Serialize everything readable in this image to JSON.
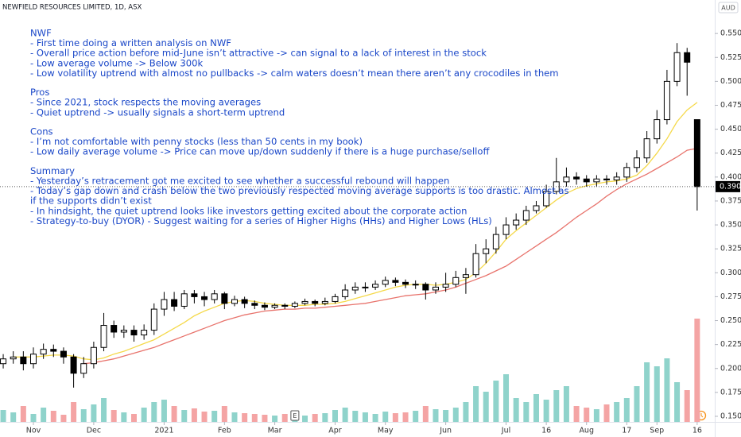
{
  "chart_data": {
    "type": "candlestick",
    "title": "NEWFIELD RESOURCES LIMITED, 1D, ASX",
    "currency": "AUD",
    "open": [
      0.205,
      0.21,
      0.212,
      0.205,
      0.215,
      0.22,
      0.218,
      0.212,
      0.195,
      0.205,
      0.222,
      0.245,
      0.238,
      0.24,
      0.235,
      0.24,
      0.262,
      0.272,
      0.265,
      0.278,
      0.275,
      0.272,
      0.278,
      0.268,
      0.272,
      0.268,
      0.266,
      0.264,
      0.266,
      0.265,
      0.268,
      0.27,
      0.268,
      0.27,
      0.275,
      0.282,
      0.285,
      0.285,
      0.288,
      0.292,
      0.29,
      0.288,
      0.288,
      0.282,
      0.285,
      0.288,
      0.295,
      0.298,
      0.32,
      0.325,
      0.34,
      0.35,
      0.355,
      0.365,
      0.37,
      0.385,
      0.395,
      0.4,
      0.398,
      0.395,
      0.398,
      0.397,
      0.4,
      0.41,
      0.42,
      0.44,
      0.46,
      0.5,
      0.53,
      0.46
    ],
    "high": [
      0.215,
      0.218,
      0.218,
      0.222,
      0.226,
      0.225,
      0.222,
      0.215,
      0.212,
      0.228,
      0.258,
      0.25,
      0.245,
      0.245,
      0.246,
      0.268,
      0.28,
      0.28,
      0.282,
      0.282,
      0.28,
      0.282,
      0.28,
      0.276,
      0.275,
      0.271,
      0.269,
      0.268,
      0.268,
      0.27,
      0.273,
      0.272,
      0.274,
      0.278,
      0.288,
      0.29,
      0.29,
      0.292,
      0.296,
      0.295,
      0.293,
      0.292,
      0.29,
      0.29,
      0.3,
      0.302,
      0.305,
      0.33,
      0.335,
      0.348,
      0.358,
      0.362,
      0.37,
      0.375,
      0.392,
      0.42,
      0.41,
      0.405,
      0.402,
      0.402,
      0.402,
      0.405,
      0.415,
      0.428,
      0.448,
      0.47,
      0.512,
      0.54,
      0.535,
      0.46
    ],
    "low": [
      0.2,
      0.205,
      0.198,
      0.2,
      0.21,
      0.212,
      0.205,
      0.18,
      0.19,
      0.2,
      0.218,
      0.232,
      0.232,
      0.228,
      0.23,
      0.235,
      0.255,
      0.26,
      0.262,
      0.268,
      0.265,
      0.268,
      0.262,
      0.265,
      0.263,
      0.262,
      0.261,
      0.262,
      0.262,
      0.263,
      0.266,
      0.265,
      0.266,
      0.268,
      0.272,
      0.278,
      0.28,
      0.282,
      0.285,
      0.286,
      0.284,
      0.283,
      0.272,
      0.278,
      0.28,
      0.285,
      0.278,
      0.295,
      0.31,
      0.32,
      0.335,
      0.345,
      0.35,
      0.362,
      0.368,
      0.382,
      0.39,
      0.392,
      0.39,
      0.39,
      0.392,
      0.392,
      0.395,
      0.405,
      0.415,
      0.435,
      0.455,
      0.495,
      0.485,
      0.365
    ],
    "close": [
      0.21,
      0.212,
      0.205,
      0.215,
      0.22,
      0.218,
      0.212,
      0.195,
      0.205,
      0.222,
      0.245,
      0.238,
      0.24,
      0.235,
      0.24,
      0.262,
      0.272,
      0.265,
      0.278,
      0.275,
      0.272,
      0.278,
      0.268,
      0.272,
      0.268,
      0.266,
      0.264,
      0.266,
      0.265,
      0.268,
      0.27,
      0.268,
      0.27,
      0.275,
      0.282,
      0.285,
      0.285,
      0.288,
      0.292,
      0.29,
      0.288,
      0.288,
      0.282,
      0.285,
      0.288,
      0.295,
      0.298,
      0.32,
      0.325,
      0.34,
      0.35,
      0.355,
      0.365,
      0.37,
      0.385,
      0.395,
      0.4,
      0.398,
      0.395,
      0.398,
      0.397,
      0.4,
      0.41,
      0.42,
      0.44,
      0.46,
      0.5,
      0.53,
      0.52,
      0.39
    ],
    "volume": [
      150,
      120,
      200,
      100,
      180,
      140,
      90,
      250,
      160,
      220,
      300,
      150,
      120,
      100,
      180,
      250,
      280,
      200,
      150,
      170,
      130,
      140,
      200,
      120,
      110,
      100,
      90,
      80,
      100,
      90,
      80,
      100,
      110,
      150,
      180,
      140,
      120,
      100,
      130,
      110,
      120,
      140,
      200,
      160,
      150,
      180,
      250,
      450,
      380,
      520,
      600,
      300,
      250,
      350,
      280,
      400,
      450,
      200,
      180,
      160,
      220,
      250,
      300,
      450,
      750,
      700,
      800,
      500,
      400,
      1300
    ],
    "up_color": "#ffffff",
    "down_color": "#000000",
    "volume_up_color": "#8fd3cb",
    "volume_down_color": "#f4a4a4",
    "series": [
      {
        "color": "#f5d94a",
        "values": [
          null,
          0.212,
          0.212,
          0.212,
          0.213,
          0.214,
          0.214,
          0.213,
          0.21,
          0.209,
          0.211,
          0.215,
          0.218,
          0.222,
          0.226,
          0.23,
          0.236,
          0.242,
          0.248,
          0.255,
          0.26,
          0.264,
          0.268,
          0.27,
          0.271,
          0.27,
          0.268,
          0.267,
          0.266,
          0.266,
          0.266,
          0.267,
          0.267,
          0.268,
          0.27,
          0.273,
          0.276,
          0.279,
          0.282,
          0.285,
          0.287,
          0.288,
          0.288,
          0.287,
          0.288,
          0.29,
          0.293,
          0.3,
          0.31,
          0.322,
          0.335,
          0.344,
          0.352,
          0.36,
          0.368,
          0.376,
          0.383,
          0.388,
          0.391,
          0.393,
          0.395,
          0.396,
          0.398,
          0.402,
          0.412,
          0.425,
          0.44,
          0.458,
          0.47,
          0.478
        ]
      },
      {
        "color": "#e8736c",
        "values": [
          null,
          null,
          null,
          null,
          null,
          null,
          null,
          null,
          0.205,
          0.206,
          0.208,
          0.21,
          0.213,
          0.216,
          0.219,
          0.222,
          0.226,
          0.23,
          0.234,
          0.238,
          0.242,
          0.246,
          0.25,
          0.253,
          0.256,
          0.258,
          0.26,
          0.261,
          0.262,
          0.262,
          0.263,
          0.263,
          0.264,
          0.265,
          0.266,
          0.267,
          0.268,
          0.27,
          0.272,
          0.274,
          0.276,
          0.277,
          0.278,
          0.28,
          0.282,
          0.285,
          0.289,
          0.293,
          0.297,
          0.302,
          0.307,
          0.314,
          0.321,
          0.328,
          0.335,
          0.342,
          0.35,
          0.358,
          0.365,
          0.372,
          0.38,
          0.387,
          0.393,
          0.398,
          0.403,
          0.409,
          0.415,
          0.421,
          0.428,
          0.43
        ]
      }
    ],
    "ylim": [
      0.145,
      0.585
    ],
    "yticks": [
      {
        "value": 0.15,
        "label": "0.150"
      },
      {
        "value": 0.175,
        "label": "0.175"
      },
      {
        "value": 0.2,
        "label": "0.200"
      },
      {
        "value": 0.225,
        "label": "0.225"
      },
      {
        "value": 0.25,
        "label": "0.250"
      },
      {
        "value": 0.275,
        "label": "0.275"
      },
      {
        "value": 0.3,
        "label": "0.300"
      },
      {
        "value": 0.325,
        "label": "0.325"
      },
      {
        "value": 0.35,
        "label": "0.350"
      },
      {
        "value": 0.375,
        "label": "0.375"
      },
      {
        "value": 0.4,
        "label": "0.400"
      },
      {
        "value": 0.425,
        "label": "0.425"
      },
      {
        "value": 0.45,
        "label": "0.450"
      },
      {
        "value": 0.475,
        "label": "0.475"
      },
      {
        "value": 0.5,
        "label": "0.500"
      },
      {
        "value": 0.525,
        "label": "0.525"
      },
      {
        "value": 0.55,
        "label": "0.550"
      }
    ],
    "xlim": [
      -0.32,
      70.75
    ],
    "xticks": [
      {
        "value": 3,
        "label": "Nov"
      },
      {
        "value": 9,
        "label": "Dec"
      },
      {
        "value": 16,
        "label": "2021"
      },
      {
        "value": 22,
        "label": "Feb"
      },
      {
        "value": 27,
        "label": "Mar"
      },
      {
        "value": 33,
        "label": "Apr"
      },
      {
        "value": 38,
        "label": "May"
      },
      {
        "value": 44,
        "label": "Jun"
      },
      {
        "value": 50,
        "label": "Jul"
      },
      {
        "value": 54,
        "label": "16"
      },
      {
        "value": 58,
        "label": "Aug"
      },
      {
        "value": 62,
        "label": "17"
      },
      {
        "value": 65,
        "label": "Sep"
      },
      {
        "value": 69,
        "label": "16"
      }
    ],
    "last_price": {
      "value": 0.39,
      "label": "0.390"
    },
    "earnings_marker": {
      "index": 29,
      "label": "E"
    },
    "annotation": [
      {
        "heading": "NWF",
        "lines": [
          "- First time doing a written analysis on NWF",
          "- Overall price action before mid-June isn’t attractive -> can signal to a lack of interest in the stock",
          "- Low average volume -> Below 300k",
          "- Low volatility uptrend with almost no pullbacks -> calm waters doesn’t mean there aren’t any crocodiles in them"
        ]
      },
      {
        "heading": "Pros",
        "lines": [
          "- Since 2021, stock respects the moving averages",
          "- Quiet uptrend -> usually signals a short-term uptrend"
        ]
      },
      {
        "heading": "Cons",
        "lines": [
          "- I’m not comfortable with penny stocks (less than 50 cents in my book)",
          "- Low daily average volume -> Price can move up/down suddenly if there is a huge purchase/selloff"
        ]
      },
      {
        "heading": "Summary",
        "lines": [
          "- Yesterday’s retracement got me excited to see whether a successful rebound will happen",
          "- Today’s gap down and crash below the two previously respected moving average supports is too drastic. Almost as",
          "if the supports didn’t exist",
          "- In hindsight, the quiet uptrend looks like investors getting excited about the corporate action",
          "- Strategy-to-buy (DYOR) - Suggest waiting for a series of Higher Highs (HHs) and Higher Lows (HLs)"
        ]
      }
    ]
  }
}
